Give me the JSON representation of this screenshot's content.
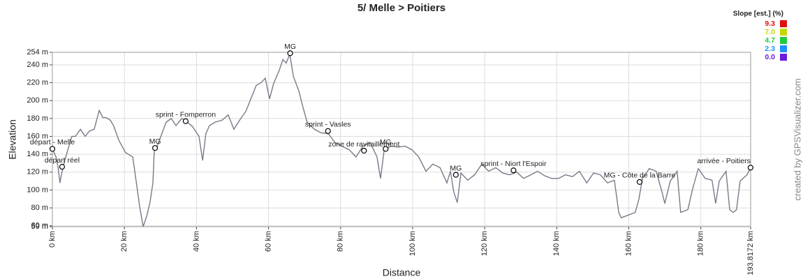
{
  "chart_data": {
    "type": "line",
    "title": "5/ Melle > Poitiers",
    "x_label": "Distance",
    "y_label": "Elevation",
    "credit": "created by GPSVisualizer.com",
    "xlim": [
      0,
      193.8172
    ],
    "ylim": [
      59,
      254
    ],
    "grid": true,
    "xticks": [
      {
        "value": 0,
        "label": "0 km"
      },
      {
        "value": 20,
        "label": "20 km"
      },
      {
        "value": 40,
        "label": "40 km"
      },
      {
        "value": 60,
        "label": "60 km"
      },
      {
        "value": 80,
        "label": "80 km"
      },
      {
        "value": 100,
        "label": "100 km"
      },
      {
        "value": 120,
        "label": "120 km"
      },
      {
        "value": 140,
        "label": "140 km"
      },
      {
        "value": 160,
        "label": "160 km"
      },
      {
        "value": 180,
        "label": "180 km"
      },
      {
        "value": 193.8172,
        "label": "193.8172 km"
      }
    ],
    "yticks": [
      {
        "value": 59,
        "label": "59 m"
      },
      {
        "value": 60,
        "label": "60 m"
      },
      {
        "value": 80,
        "label": "80 m"
      },
      {
        "value": 100,
        "label": "100 m"
      },
      {
        "value": 120,
        "label": "120 m"
      },
      {
        "value": 140,
        "label": "140 m"
      },
      {
        "value": 160,
        "label": "160 m"
      },
      {
        "value": 180,
        "label": "180 m"
      },
      {
        "value": 200,
        "label": "200 m"
      },
      {
        "value": 220,
        "label": "220 m"
      },
      {
        "value": 240,
        "label": "240 m"
      },
      {
        "value": 254,
        "label": "254 m"
      }
    ],
    "slope_legend": {
      "title": "Slope [est.] (%)",
      "items": [
        {
          "label": "9.3",
          "color": "#e01010"
        },
        {
          "label": "7.0",
          "color": "#c8d800"
        },
        {
          "label": "4.7",
          "color": "#20cc40"
        },
        {
          "label": "2.3",
          "color": "#1e90ff"
        },
        {
          "label": "0.0",
          "color": "#6a1be0"
        }
      ]
    },
    "series": [
      {
        "name": "Elevation",
        "color": "#7a7a8a",
        "x": [
          0,
          1.0,
          1.6,
          2.1,
          2.5,
          3.3,
          4.3,
          5.4,
          6.4,
          7.8,
          9.1,
          10.3,
          11.6,
          13.0,
          14.0,
          14.9,
          16.1,
          17.1,
          18.4,
          20.3,
          22.3,
          23.4,
          24.2,
          25.2,
          26.2,
          27.1,
          27.9,
          28.3,
          29.1,
          30.4,
          31.6,
          33.0,
          34.3,
          35.9,
          37.4,
          38.9,
          40.7,
          41.7,
          42.6,
          43.6,
          45.2,
          47.1,
          48.8,
          50.4,
          52.3,
          53.7,
          55.2,
          56.6,
          57.9,
          59.1,
          60.3,
          61.4,
          63.0,
          64.0,
          64.9,
          65.9,
          66.9,
          68.4,
          69.6,
          70.7,
          72.7,
          74.6,
          76.6,
          78.5,
          80.4,
          82.4,
          84.3,
          86.2,
          88.2,
          90.1,
          91.1,
          92.1,
          94.0,
          95.9,
          97.9,
          99.8,
          101.7,
          103.7,
          105.6,
          107.6,
          109.5,
          110.5,
          111.4,
          112.4,
          113.4,
          115.3,
          117.2,
          119.2,
          121.1,
          123.1,
          125.0,
          126.9,
          128.9,
          130.8,
          132.8,
          134.7,
          136.6,
          138.6,
          140.5,
          142.4,
          144.4,
          146.3,
          148.3,
          150.2,
          152.1,
          154.1,
          156.0,
          157.2,
          157.9,
          159.9,
          161.8,
          162.8,
          163.8,
          165.7,
          167.6,
          169.2,
          170.0,
          171.5,
          173.4,
          174.4,
          176.4,
          177.7,
          179.3,
          181.2,
          183.1,
          184.1,
          185.1,
          187.0,
          188.0,
          189.0,
          189.9,
          190.9,
          192.8,
          193.8
        ],
        "values": [
          146,
          137,
          125,
          108,
          117,
          131,
          145,
          160,
          160,
          168,
          160,
          166,
          168,
          189,
          181,
          181,
          178,
          171,
          156,
          142,
          137,
          106,
          82,
          59,
          71,
          86,
          108,
          145,
          149,
          163,
          176,
          180,
          172,
          180,
          176,
          171,
          160,
          133,
          163,
          172,
          176,
          178,
          184,
          168,
          180,
          188,
          203,
          217,
          220,
          225,
          202,
          219,
          234,
          246,
          242,
          252,
          227,
          211,
          192,
          176,
          168,
          164,
          163,
          153,
          149,
          145,
          137,
          149,
          153,
          137,
          113,
          145,
          149,
          148,
          149,
          145,
          137,
          121,
          129,
          125,
          108,
          121,
          98,
          86,
          119,
          111,
          117,
          129,
          121,
          125,
          119,
          117,
          120,
          113,
          117,
          121,
          116,
          113,
          113,
          117,
          115,
          121,
          108,
          119,
          117,
          108,
          111,
          75,
          69,
          72,
          75,
          90,
          113,
          124,
          121,
          98,
          85,
          110,
          121,
          75,
          78,
          101,
          124,
          113,
          111,
          85,
          110,
          121,
          78,
          75,
          78,
          110,
          117,
          125
        ]
      }
    ],
    "annotations": [
      {
        "text": "départ - Melle",
        "x": 0,
        "y": 146
      },
      {
        "text": "départ réel",
        "x": 2.7,
        "y": 126
      },
      {
        "text": "MG",
        "x": 28.5,
        "y": 147
      },
      {
        "text": "sprint - Fomperron",
        "x": 37,
        "y": 177
      },
      {
        "text": "MG",
        "x": 66,
        "y": 253
      },
      {
        "text": "sprint - Vasles",
        "x": 76.5,
        "y": 166
      },
      {
        "text": "zone de ravitaillement",
        "x": 86.5,
        "y": 144
      },
      {
        "text": "MG",
        "x": 92.5,
        "y": 146
      },
      {
        "text": "MG",
        "x": 112,
        "y": 117
      },
      {
        "text": "sprint - Niort l'Espoir",
        "x": 128,
        "y": 122
      },
      {
        "text": "MG - Côte de la Barre",
        "x": 163,
        "y": 109
      },
      {
        "text": "arrivée - Poitiers",
        "x": 193.8,
        "y": 125
      }
    ]
  }
}
